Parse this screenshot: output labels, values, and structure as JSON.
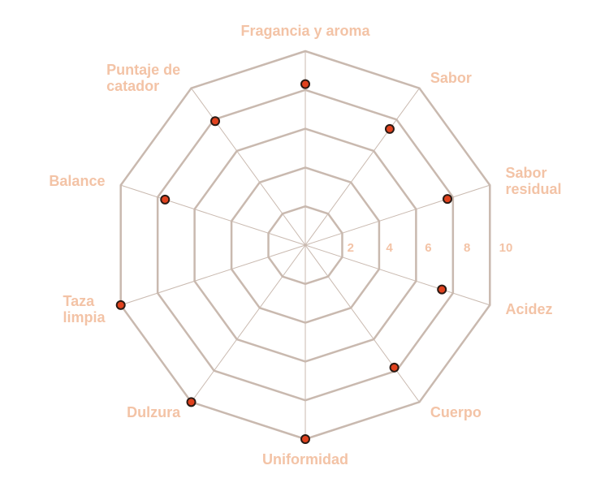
{
  "chart_data": {
    "type": "radar",
    "categories": [
      "Fragancia y aroma",
      "Sabor",
      "Sabor\nresidual",
      "Acidez",
      "Cuerpo",
      "Uniformidad",
      "Dulzura",
      "Taza\nlimpia",
      "Balance",
      "Puntaje de\ncatador"
    ],
    "values": [
      8.3,
      7.4,
      7.7,
      7.4,
      7.8,
      10,
      10,
      10,
      7.6,
      7.9
    ],
    "color": "#e0421e",
    "grid_color": "#c9b9af",
    "label_color": "#f3c3a6",
    "ylim": [
      0,
      10
    ],
    "yticks": [
      2,
      4,
      6,
      8,
      10
    ]
  }
}
